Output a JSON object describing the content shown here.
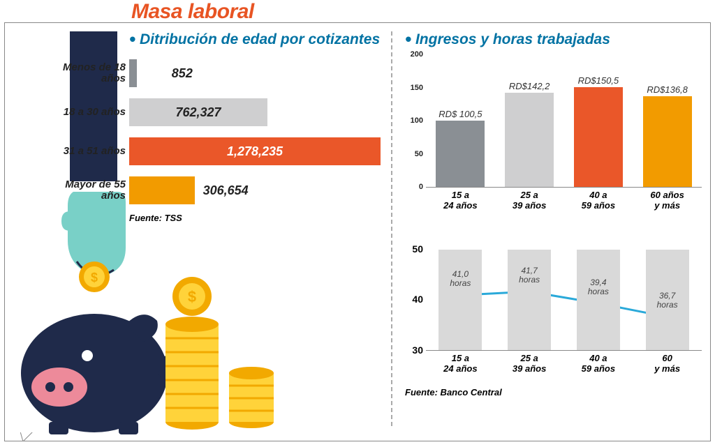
{
  "title": "Masa laboral",
  "title_color": "#e85423",
  "title_fontsize": 30,
  "left": {
    "subhead": "Ditribución de edad por cotizantes",
    "chart": {
      "type": "bar-horizontal",
      "max_value": 1400000,
      "source": "Fuente: TSS",
      "rows": [
        {
          "label": "Menos de 18 años",
          "value": 852,
          "display": "852",
          "color": "#8a8f94",
          "width_pct": 3,
          "value_pos": "outside"
        },
        {
          "label": "18 a 30 años",
          "value": 762327,
          "display": "762,327",
          "color": "#cfcfd0",
          "width_pct": 55,
          "value_pos": "center"
        },
        {
          "label": "31 a 51 años",
          "value": 1278235,
          "display": "1,278,235",
          "color": "#ea5729",
          "width_pct": 100,
          "value_pos": "inside"
        },
        {
          "label": "Mayor de 55 años",
          "value": 306654,
          "display": "306,654",
          "color": "#f29b00",
          "width_pct": 26,
          "value_pos": "outside-near"
        }
      ]
    }
  },
  "right": {
    "subhead": "Ingresos y horas trabajadas",
    "bar_chart": {
      "type": "bar-vertical",
      "ylim": [
        0,
        200
      ],
      "ytick_step": 50,
      "yticks": [
        0,
        50,
        100,
        150,
        200
      ],
      "bars": [
        {
          "label_top": "RD$ 100,5",
          "xlabel": "15 a\n24 años",
          "value": 100.5,
          "color": "#8a8f94"
        },
        {
          "label_top": "RD$142,2",
          "xlabel": "25 a\n39 años",
          "value": 142.2,
          "color": "#cfcfd0"
        },
        {
          "label_top": "RD$150,5",
          "xlabel": "40 a\n59 años",
          "value": 150.5,
          "color": "#ea5729"
        },
        {
          "label_top": "RD$136,8",
          "xlabel": "60 años\ny más",
          "value": 136.8,
          "color": "#f29b00"
        }
      ]
    },
    "line_chart": {
      "type": "line",
      "ylim": [
        30,
        50
      ],
      "yticks": [
        30,
        40,
        50
      ],
      "line_color": "#2aa9d9",
      "marker_color": "#2aa9d9",
      "marker_border": "#ffffff",
      "bg_bar_color": "#d9d9d9",
      "points": [
        {
          "xlabel": "15 a\n24 años",
          "value": 41.0,
          "label": "41,0\nhoras"
        },
        {
          "xlabel": "25 a\n39 años",
          "value": 41.7,
          "label": "41,7\nhoras"
        },
        {
          "xlabel": "40 a\n59 años",
          "value": 39.4,
          "label": "39,4\nhoras"
        },
        {
          "xlabel": "60\ny más",
          "value": 36.7,
          "label": "36,7\nhoras"
        }
      ]
    },
    "source": "Fuente: Banco Central"
  },
  "colors": {
    "accent_blue": "#0072a3",
    "accent_orange": "#e85423",
    "navy": "#1f2a4a",
    "hand": "#79d0c7",
    "coin_outer": "#f2a900",
    "coin_inner": "#ffd33a"
  }
}
